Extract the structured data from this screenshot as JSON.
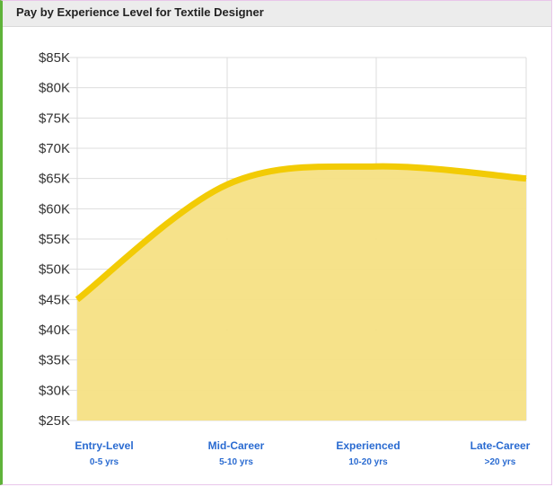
{
  "header": {
    "title": "Pay by Experience Level for Textile Designer"
  },
  "chart_data": {
    "type": "area",
    "title": "Pay by Experience Level for Textile Designer",
    "categories": [
      {
        "label": "Entry-Level",
        "sublabel": "0-5 yrs"
      },
      {
        "label": "Mid-Career",
        "sublabel": "5-10 yrs"
      },
      {
        "label": "Experienced",
        "sublabel": "10-20 yrs"
      },
      {
        "label": "Late-Career",
        "sublabel": ">20 yrs"
      }
    ],
    "values": [
      45000,
      64000,
      67000,
      65000
    ],
    "ylim": [
      25000,
      85000
    ],
    "yticks": [
      85000,
      80000,
      75000,
      70000,
      65000,
      60000,
      55000,
      50000,
      45000,
      40000,
      35000,
      30000,
      25000
    ],
    "ytick_labels": [
      "$85K",
      "$80K",
      "$75K",
      "$70K",
      "$65K",
      "$60K",
      "$55K",
      "$50K",
      "$45K",
      "$40K",
      "$35K",
      "$30K",
      "$25K"
    ],
    "grid": true,
    "colors": {
      "fill": "#f5e084",
      "line": "#f2cb05",
      "grid": "#dddddd"
    }
  }
}
